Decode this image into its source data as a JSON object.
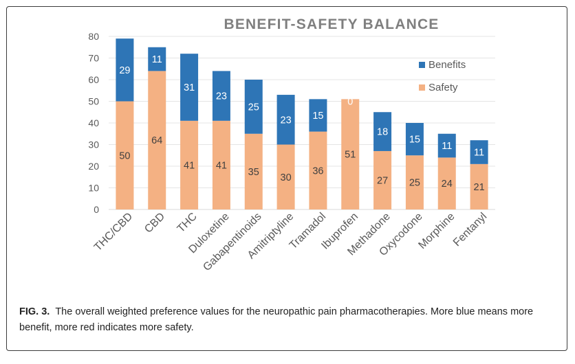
{
  "chart_data": {
    "type": "bar",
    "stacked": true,
    "title": "BENEFIT-SAFETY BALANCE",
    "categories": [
      "THC/CBD",
      "CBD",
      "THC",
      "Duloxetine",
      "Gabapentinoids",
      "Amitriptyline",
      "Tramadol",
      "Ibuprofen",
      "Methadone",
      "Oxycodone",
      "Morphine",
      "Fentanyl"
    ],
    "series": [
      {
        "name": "Safety",
        "color": "#f4b183",
        "values": [
          50,
          64,
          41,
          41,
          35,
          30,
          36,
          51,
          27,
          25,
          24,
          21
        ]
      },
      {
        "name": "Benefits",
        "color": "#2e75b6",
        "values": [
          29,
          11,
          31,
          23,
          25,
          23,
          15,
          0,
          18,
          15,
          11,
          11
        ]
      }
    ],
    "ylim": [
      0,
      80
    ],
    "yticks": [
      0,
      10,
      20,
      30,
      40,
      50,
      60,
      70,
      80
    ],
    "grid": true,
    "legend_position": "top-right"
  },
  "caption": {
    "label": "FIG. 3.",
    "text": "The overall weighted preference values for the neuropathic pain pharmacotherapies. More blue means more benefit, more red indicates more safety."
  }
}
